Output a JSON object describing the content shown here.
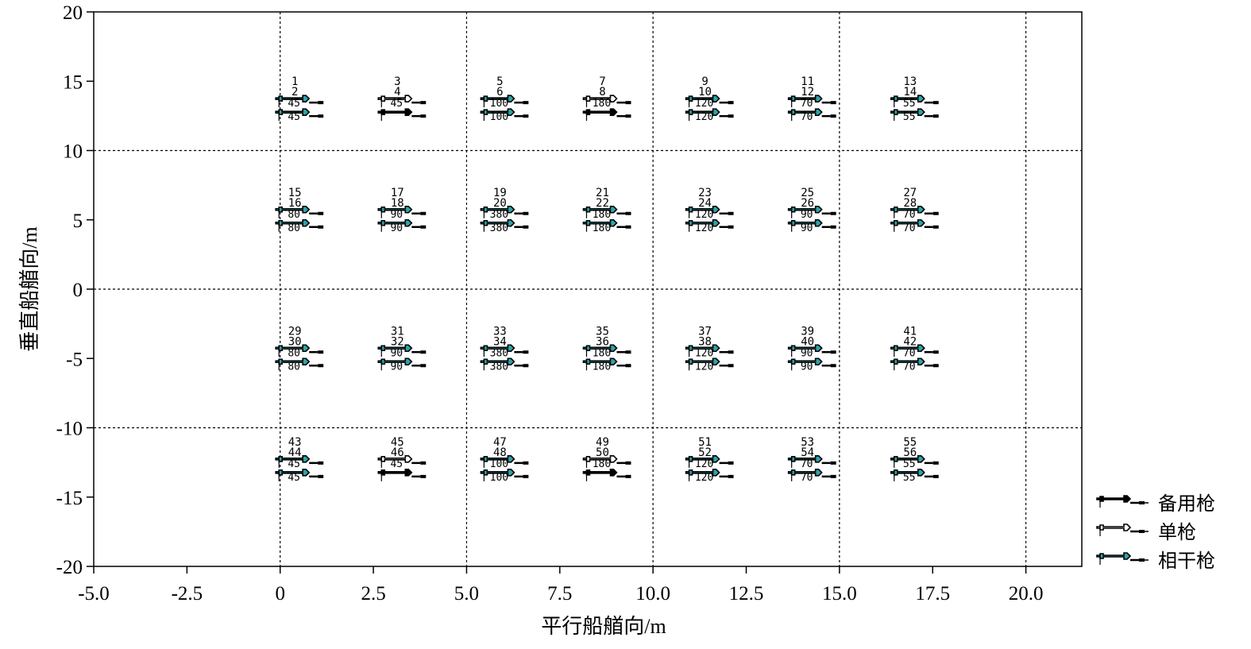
{
  "chart_data": {
    "type": "scatter",
    "title": "",
    "xlabel": "平行船艏向/m",
    "ylabel": "垂直船艏向/m",
    "xlim": [
      -5,
      21.5
    ],
    "ylim": [
      -20,
      20
    ],
    "grid": true,
    "x_ticks": [
      -5,
      -2.5,
      0,
      2.5,
      5,
      7.5,
      10,
      12.5,
      15,
      17.5,
      20
    ],
    "x_tick_labels": [
      "-5.0",
      "-2.5",
      "0",
      "2.5",
      "5.0",
      "7.5",
      "10.0",
      "12.5",
      "15.0",
      "17.5",
      "20.0"
    ],
    "y_ticks": [
      20,
      15,
      10,
      5,
      0,
      -5,
      -10,
      -15,
      -20
    ],
    "y_tick_labels": [
      "20",
      "15",
      "10",
      "5",
      "0",
      "-5",
      "-10",
      "-15",
      "-20"
    ],
    "x_grid": [
      0,
      5,
      10,
      15,
      20
    ],
    "y_grid": [
      -10,
      0,
      10
    ],
    "legend_position": "right-bottom",
    "legend": [
      {
        "type": "spare",
        "label": "备用枪"
      },
      {
        "type": "single",
        "label": "单枪"
      },
      {
        "type": "coherent",
        "label": "相干枪"
      }
    ],
    "colors": {
      "spare": "#000000",
      "single": "#ffffff",
      "coherent": "#2ea4aa"
    },
    "clusters": [
      {
        "x": 0.5,
        "y": 13,
        "ids": [
          "1",
          "2"
        ],
        "top": {
          "vol": "45",
          "type": "coherent"
        },
        "bottom": {
          "vol": "45",
          "type": "coherent"
        }
      },
      {
        "x": 3.25,
        "y": 13,
        "ids": [
          "3",
          "4"
        ],
        "top": {
          "vol": "45",
          "type": "single"
        },
        "bottom": {
          "vol": "",
          "type": "spare"
        }
      },
      {
        "x": 6.0,
        "y": 13,
        "ids": [
          "5",
          "6"
        ],
        "top": {
          "vol": "100",
          "type": "coherent"
        },
        "bottom": {
          "vol": "100",
          "type": "coherent"
        }
      },
      {
        "x": 8.75,
        "y": 13,
        "ids": [
          "7",
          "8"
        ],
        "top": {
          "vol": "180",
          "type": "single"
        },
        "bottom": {
          "vol": "",
          "type": "spare"
        }
      },
      {
        "x": 11.5,
        "y": 13,
        "ids": [
          "9",
          "10"
        ],
        "top": {
          "vol": "120",
          "type": "coherent"
        },
        "bottom": {
          "vol": "120",
          "type": "coherent"
        }
      },
      {
        "x": 14.25,
        "y": 13,
        "ids": [
          "11",
          "12"
        ],
        "top": {
          "vol": "70",
          "type": "coherent"
        },
        "bottom": {
          "vol": "70",
          "type": "coherent"
        }
      },
      {
        "x": 17.0,
        "y": 13,
        "ids": [
          "13",
          "14"
        ],
        "top": {
          "vol": "55",
          "type": "coherent"
        },
        "bottom": {
          "vol": "55",
          "type": "coherent"
        }
      },
      {
        "x": 0.5,
        "y": 5,
        "ids": [
          "15",
          "16"
        ],
        "top": {
          "vol": "80",
          "type": "coherent"
        },
        "bottom": {
          "vol": "80",
          "type": "coherent"
        }
      },
      {
        "x": 3.25,
        "y": 5,
        "ids": [
          "17",
          "18"
        ],
        "top": {
          "vol": "90",
          "type": "coherent"
        },
        "bottom": {
          "vol": "90",
          "type": "coherent"
        }
      },
      {
        "x": 6.0,
        "y": 5,
        "ids": [
          "19",
          "20"
        ],
        "top": {
          "vol": "380",
          "type": "coherent"
        },
        "bottom": {
          "vol": "380",
          "type": "coherent"
        }
      },
      {
        "x": 8.75,
        "y": 5,
        "ids": [
          "21",
          "22"
        ],
        "top": {
          "vol": "180",
          "type": "coherent"
        },
        "bottom": {
          "vol": "180",
          "type": "coherent"
        }
      },
      {
        "x": 11.5,
        "y": 5,
        "ids": [
          "23",
          "24"
        ],
        "top": {
          "vol": "120",
          "type": "coherent"
        },
        "bottom": {
          "vol": "120",
          "type": "coherent"
        }
      },
      {
        "x": 14.25,
        "y": 5,
        "ids": [
          "25",
          "26"
        ],
        "top": {
          "vol": "90",
          "type": "coherent"
        },
        "bottom": {
          "vol": "90",
          "type": "coherent"
        }
      },
      {
        "x": 17.0,
        "y": 5,
        "ids": [
          "27",
          "28"
        ],
        "top": {
          "vol": "70",
          "type": "coherent"
        },
        "bottom": {
          "vol": "70",
          "type": "coherent"
        }
      },
      {
        "x": 0.5,
        "y": -5,
        "ids": [
          "29",
          "30"
        ],
        "top": {
          "vol": "80",
          "type": "coherent"
        },
        "bottom": {
          "vol": "80",
          "type": "coherent"
        }
      },
      {
        "x": 3.25,
        "y": -5,
        "ids": [
          "31",
          "32"
        ],
        "top": {
          "vol": "90",
          "type": "coherent"
        },
        "bottom": {
          "vol": "90",
          "type": "coherent"
        }
      },
      {
        "x": 6.0,
        "y": -5,
        "ids": [
          "33",
          "34"
        ],
        "top": {
          "vol": "380",
          "type": "coherent"
        },
        "bottom": {
          "vol": "380",
          "type": "coherent"
        }
      },
      {
        "x": 8.75,
        "y": -5,
        "ids": [
          "35",
          "36"
        ],
        "top": {
          "vol": "180",
          "type": "coherent"
        },
        "bottom": {
          "vol": "180",
          "type": "coherent"
        }
      },
      {
        "x": 11.5,
        "y": -5,
        "ids": [
          "37",
          "38"
        ],
        "top": {
          "vol": "120",
          "type": "coherent"
        },
        "bottom": {
          "vol": "120",
          "type": "coherent"
        }
      },
      {
        "x": 14.25,
        "y": -5,
        "ids": [
          "39",
          "40"
        ],
        "top": {
          "vol": "90",
          "type": "coherent"
        },
        "bottom": {
          "vol": "90",
          "type": "coherent"
        }
      },
      {
        "x": 17.0,
        "y": -5,
        "ids": [
          "41",
          "42"
        ],
        "top": {
          "vol": "70",
          "type": "coherent"
        },
        "bottom": {
          "vol": "70",
          "type": "coherent"
        }
      },
      {
        "x": 0.5,
        "y": -13,
        "ids": [
          "43",
          "44"
        ],
        "top": {
          "vol": "45",
          "type": "coherent"
        },
        "bottom": {
          "vol": "45",
          "type": "coherent"
        }
      },
      {
        "x": 3.25,
        "y": -13,
        "ids": [
          "45",
          "46"
        ],
        "top": {
          "vol": "45",
          "type": "single"
        },
        "bottom": {
          "vol": "",
          "type": "spare"
        }
      },
      {
        "x": 6.0,
        "y": -13,
        "ids": [
          "47",
          "48"
        ],
        "top": {
          "vol": "100",
          "type": "coherent"
        },
        "bottom": {
          "vol": "100",
          "type": "coherent"
        }
      },
      {
        "x": 8.75,
        "y": -13,
        "ids": [
          "49",
          "50"
        ],
        "top": {
          "vol": "180",
          "type": "single"
        },
        "bottom": {
          "vol": "",
          "type": "spare"
        }
      },
      {
        "x": 11.5,
        "y": -13,
        "ids": [
          "51",
          "52"
        ],
        "top": {
          "vol": "120",
          "type": "coherent"
        },
        "bottom": {
          "vol": "120",
          "type": "coherent"
        }
      },
      {
        "x": 14.25,
        "y": -13,
        "ids": [
          "53",
          "54"
        ],
        "top": {
          "vol": "70",
          "type": "coherent"
        },
        "bottom": {
          "vol": "70",
          "type": "coherent"
        }
      },
      {
        "x": 17.0,
        "y": -13,
        "ids": [
          "55",
          "56"
        ],
        "top": {
          "vol": "55",
          "type": "coherent"
        },
        "bottom": {
          "vol": "55",
          "type": "coherent"
        }
      }
    ]
  }
}
